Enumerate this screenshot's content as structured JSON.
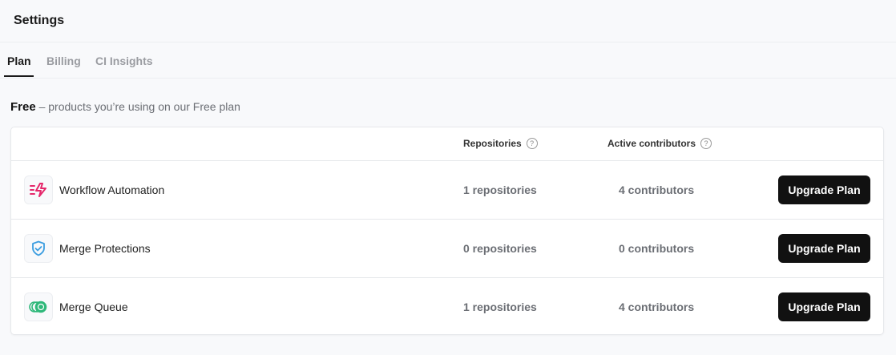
{
  "header": {
    "title": "Settings"
  },
  "tabs": [
    {
      "label": "Plan",
      "active": true
    },
    {
      "label": "Billing"
    },
    {
      "label": "CI Insights"
    }
  ],
  "plan": {
    "name": "Free",
    "description": "– products you’re using on our Free plan"
  },
  "table": {
    "columns": {
      "repositories": "Repositories",
      "contributors": "Active contributors",
      "help_icon": "?"
    },
    "rows": [
      {
        "icon": "lightning-icon",
        "icon_color": "#e5286b",
        "name": "Workflow Automation",
        "repositories": "1 repositories",
        "contributors": "4 contributors",
        "button": "Upgrade Plan"
      },
      {
        "icon": "shield-check-icon",
        "icon_color": "#3b9de0",
        "name": "Merge Protections",
        "repositories": "0 repositories",
        "contributors": "0 contributors",
        "button": "Upgrade Plan"
      },
      {
        "icon": "merge-queue-icon",
        "icon_color": "#2fb87a",
        "name": "Merge Queue",
        "repositories": "1 repositories",
        "contributors": "4 contributors",
        "button": "Upgrade Plan"
      }
    ]
  }
}
